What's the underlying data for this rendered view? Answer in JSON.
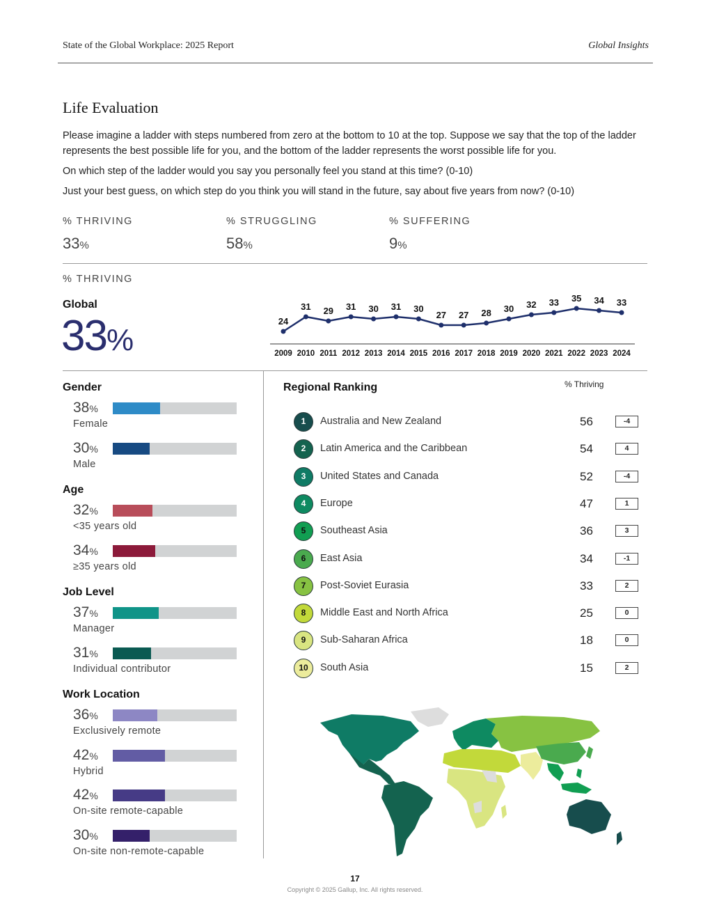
{
  "header": {
    "report_title": "State of the Global Workplace: 2025 Report",
    "section_tag": "Global Insights"
  },
  "section": {
    "title": "Life Evaluation",
    "intro": "Please imagine a ladder with steps numbered from zero at the bottom to 10 at the top. Suppose we say that the top of the ladder represents the best possible life for you, and the bottom of the ladder represents the worst possible life for you.",
    "question_1": "On which step of the ladder would you say you personally feel you stand at this time? (0-10)",
    "question_2": "Just your best guess, on which step do you think you will stand in the future, say about five years from now? (0-10)"
  },
  "summary": [
    {
      "label": "% THRIVING",
      "value": "33",
      "unit": "%"
    },
    {
      "label": "% STRUGGLING",
      "value": "58",
      "unit": "%"
    },
    {
      "label": "% SUFFERING",
      "value": "9",
      "unit": "%"
    }
  ],
  "thriving_section": {
    "label": "% THRIVING",
    "global_label": "Global",
    "global_value": "33",
    "global_unit": "%"
  },
  "chart_data": {
    "type": "line",
    "x": [
      "2009",
      "2010",
      "2011",
      "2012",
      "2013",
      "2014",
      "2015",
      "2016",
      "2017",
      "2018",
      "2019",
      "2020",
      "2021",
      "2022",
      "2023",
      "2024"
    ],
    "series": [
      {
        "values": [
          24,
          31,
          29,
          31,
          30,
          31,
          30,
          27,
          27,
          28,
          30,
          32,
          33,
          35,
          34,
          33
        ]
      }
    ],
    "data_labels": true,
    "line_color": "#1e2f6b",
    "title": "",
    "xlabel": "",
    "ylabel": ""
  },
  "breakdowns": [
    {
      "heading": "Gender",
      "items": [
        {
          "value": 38,
          "unit": "%",
          "label": "Female",
          "color": "#2e8bc7"
        },
        {
          "value": 30,
          "unit": "%",
          "label": "Male",
          "color": "#174a82"
        }
      ]
    },
    {
      "heading": "Age",
      "items": [
        {
          "value": 32,
          "unit": "%",
          "label": "<35 years old",
          "color": "#b84d5a"
        },
        {
          "value": 34,
          "unit": "%",
          "label": "≥35 years old",
          "color": "#8c1a3a"
        }
      ]
    },
    {
      "heading": "Job Level",
      "items": [
        {
          "value": 37,
          "unit": "%",
          "label": "Manager",
          "color": "#0f9488"
        },
        {
          "value": 31,
          "unit": "%",
          "label": "Individual contributor",
          "color": "#0a5a52"
        }
      ]
    },
    {
      "heading": "Work Location",
      "items": [
        {
          "value": 36,
          "unit": "%",
          "label": "Exclusively remote",
          "color": "#8d87c4"
        },
        {
          "value": 42,
          "unit": "%",
          "label": "Hybrid",
          "color": "#625ca4"
        },
        {
          "value": 42,
          "unit": "%",
          "label": "On-site remote-capable",
          "color": "#463b86"
        },
        {
          "value": 30,
          "unit": "%",
          "label": "On-site non-remote-capable",
          "color": "#34206a"
        }
      ]
    }
  ],
  "regional_ranking": {
    "title": "Regional Ranking",
    "column_label": "% Thriving",
    "rows": [
      {
        "rank": "1",
        "name": "Australia and New Zealand",
        "value": "56",
        "change": "-4",
        "color": "#174d4d",
        "text_color": "#ffffff"
      },
      {
        "rank": "2",
        "name": "Latin America and the Caribbean",
        "value": "54",
        "change": "4",
        "color": "#14634f",
        "text_color": "#ffffff"
      },
      {
        "rank": "3",
        "name": "United States and Canada",
        "value": "52",
        "change": "-4",
        "color": "#0f7b65",
        "text_color": "#ffffff"
      },
      {
        "rank": "4",
        "name": "Europe",
        "value": "47",
        "change": "1",
        "color": "#0e8a61",
        "text_color": "#ffffff"
      },
      {
        "rank": "5",
        "name": "Southeast Asia",
        "value": "36",
        "change": "3",
        "color": "#119e52",
        "text_color": "#111111"
      },
      {
        "rank": "6",
        "name": "East Asia",
        "value": "34",
        "change": "-1",
        "color": "#4aaa4e",
        "text_color": "#111111"
      },
      {
        "rank": "7",
        "name": "Post-Soviet Eurasia",
        "value": "33",
        "change": "2",
        "color": "#87c242",
        "text_color": "#111111"
      },
      {
        "rank": "8",
        "name": "Middle East and North Africa",
        "value": "25",
        "change": "0",
        "color": "#c2d93a",
        "text_color": "#111111"
      },
      {
        "rank": "9",
        "name": "Sub-Saharan Africa",
        "value": "18",
        "change": "0",
        "color": "#d9e581",
        "text_color": "#111111"
      },
      {
        "rank": "10",
        "name": "South Asia",
        "value": "15",
        "change": "2",
        "color": "#ecec9c",
        "text_color": "#111111"
      }
    ]
  },
  "footer": {
    "page_number": "17",
    "copyright": "Copyright © 2025 Gallup, Inc. All rights reserved."
  }
}
